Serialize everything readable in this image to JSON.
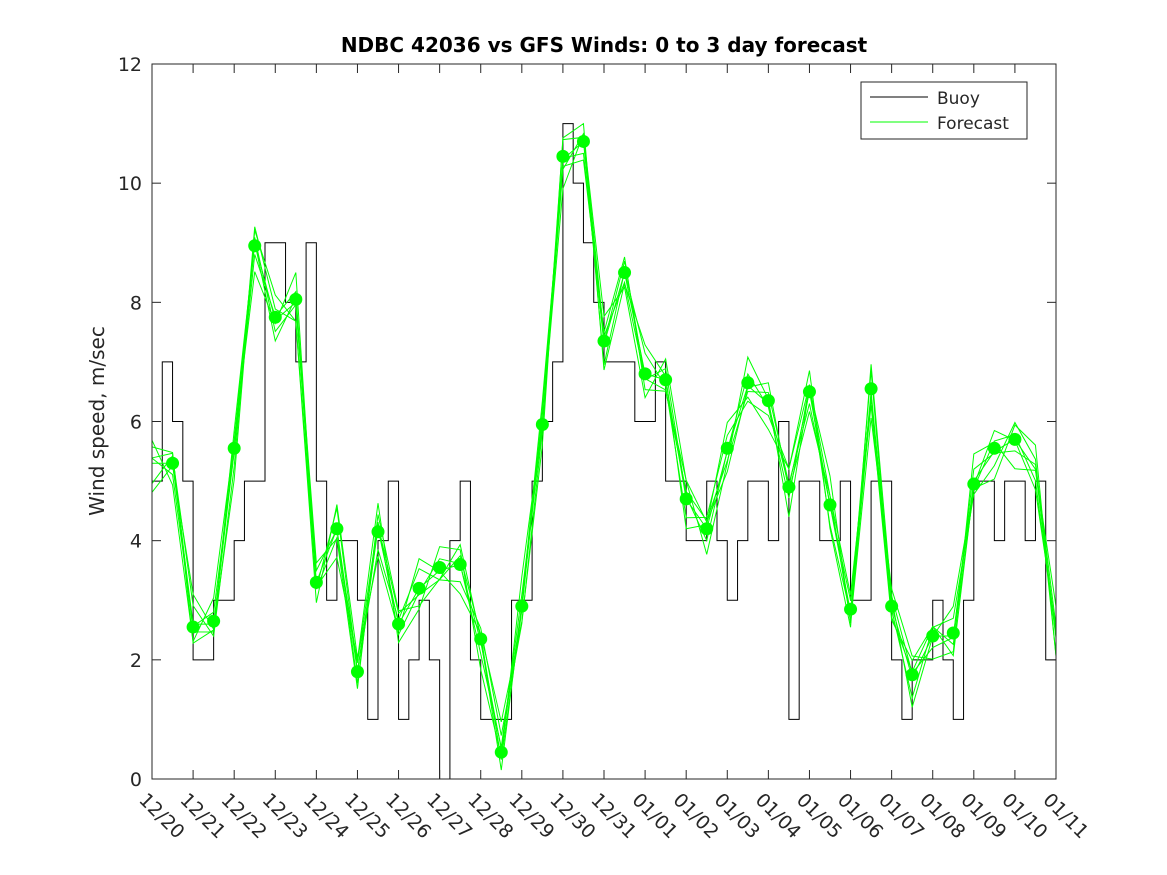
{
  "chart_data": {
    "type": "line",
    "title": "NDBC 42036 vs GFS Winds: 0 to 3 day forecast",
    "xlabel": "",
    "ylabel": "Wind speed, m/sec",
    "ylim": [
      0,
      12
    ],
    "yticks": [
      0,
      2,
      4,
      6,
      8,
      10,
      12
    ],
    "xlim": [
      "12/20",
      "01/11"
    ],
    "xticks": [
      "12/20",
      "12/21",
      "12/22",
      "12/23",
      "12/24",
      "12/25",
      "12/26",
      "12/27",
      "12/28",
      "12/29",
      "12/30",
      "12/31",
      "01/01",
      "01/02",
      "01/03",
      "01/04",
      "01/05",
      "01/06",
      "01/07",
      "01/08",
      "01/09",
      "01/10",
      "01/11"
    ],
    "grid": false,
    "legend_position": "top-right",
    "colors": {
      "buoy": "#000000",
      "forecast": "#00ff00"
    },
    "series": [
      {
        "name": "Buoy",
        "style": "stairs",
        "x": [
          "12/20 00:00",
          "12/20 06:00",
          "12/20 12:00",
          "12/20 18:00",
          "12/21 00:00",
          "12/21 06:00",
          "12/21 12:00",
          "12/21 18:00",
          "12/22 00:00",
          "12/22 06:00",
          "12/22 12:00",
          "12/22 18:00",
          "12/23 00:00",
          "12/23 06:00",
          "12/23 12:00",
          "12/23 18:00",
          "12/24 00:00",
          "12/24 06:00",
          "12/24 12:00",
          "12/24 18:00",
          "12/25 00:00",
          "12/25 06:00",
          "12/25 12:00",
          "12/25 18:00",
          "12/26 00:00",
          "12/26 06:00",
          "12/26 12:00",
          "12/26 18:00",
          "12/27 00:00",
          "12/27 06:00",
          "12/27 12:00",
          "12/27 18:00",
          "12/28 00:00",
          "12/28 06:00",
          "12/28 12:00",
          "12/28 18:00",
          "12/29 00:00",
          "12/29 06:00",
          "12/29 12:00",
          "12/29 18:00",
          "12/30 00:00",
          "12/30 06:00",
          "12/30 12:00",
          "12/30 18:00",
          "12/31 00:00",
          "12/31 06:00",
          "12/31 12:00",
          "12/31 18:00",
          "01/01 00:00",
          "01/01 06:00",
          "01/01 12:00",
          "01/01 18:00",
          "01/02 00:00",
          "01/02 06:00",
          "01/02 12:00",
          "01/02 18:00",
          "01/03 00:00",
          "01/03 06:00",
          "01/03 12:00",
          "01/03 18:00",
          "01/04 00:00",
          "01/04 06:00",
          "01/04 12:00",
          "01/04 18:00",
          "01/05 00:00",
          "01/05 06:00",
          "01/05 12:00",
          "01/05 18:00",
          "01/06 00:00",
          "01/06 06:00",
          "01/06 12:00",
          "01/06 18:00",
          "01/07 00:00",
          "01/07 06:00",
          "01/07 12:00",
          "01/07 18:00",
          "01/08 00:00",
          "01/08 06:00",
          "01/08 12:00",
          "01/08 18:00",
          "01/09 00:00",
          "01/09 06:00",
          "01/09 12:00",
          "01/09 18:00",
          "01/10 00:00",
          "01/10 06:00",
          "01/10 12:00",
          "01/10 18:00"
        ],
        "values": [
          5,
          7,
          6,
          5,
          2,
          2,
          3,
          3,
          4,
          5,
          5,
          9,
          9,
          8,
          7,
          9,
          5,
          3,
          4,
          4,
          3,
          1,
          4,
          5,
          1,
          2,
          3,
          2,
          0,
          4,
          5,
          2,
          1,
          1,
          1,
          3,
          3,
          5,
          6,
          7,
          11,
          10,
          9,
          8,
          7,
          7,
          7,
          6,
          6,
          7,
          5,
          5,
          4,
          4,
          5,
          4,
          3,
          4,
          5,
          5,
          4,
          6,
          1,
          5,
          5,
          4,
          4,
          5,
          3,
          3,
          5,
          5,
          2,
          1,
          2,
          2,
          3,
          2,
          1,
          3,
          5,
          5,
          4,
          5,
          5,
          4,
          5,
          2
        ]
      },
      {
        "name": "Forecast",
        "style": "ensemble-lines",
        "x": [
          "12/20 00:00",
          "12/20 12:00",
          "12/21 00:00",
          "12/21 12:00",
          "12/22 00:00",
          "12/22 12:00",
          "12/23 00:00",
          "12/23 12:00",
          "12/24 00:00",
          "12/24 12:00",
          "12/25 00:00",
          "12/25 12:00",
          "12/26 00:00",
          "12/26 12:00",
          "12/27 00:00",
          "12/27 12:00",
          "12/28 00:00",
          "12/28 12:00",
          "12/29 00:00",
          "12/29 12:00",
          "12/30 00:00",
          "12/30 12:00",
          "12/31 00:00",
          "12/31 12:00",
          "01/01 00:00",
          "01/01 12:00",
          "01/02 00:00",
          "01/02 12:00",
          "01/03 00:00",
          "01/03 12:00",
          "01/04 00:00",
          "01/04 12:00",
          "01/05 00:00",
          "01/05 12:00",
          "01/06 00:00",
          "01/06 12:00",
          "01/07 00:00",
          "01/07 12:00",
          "01/08 00:00",
          "01/08 12:00",
          "01/09 00:00",
          "01/09 12:00",
          "01/10 00:00",
          "01/10 12:00",
          "01/11 00:00"
        ],
        "values": [
          5.3,
          5.3,
          2.6,
          2.6,
          5.5,
          9.0,
          7.7,
          8.0,
          3.3,
          4.2,
          1.8,
          4.2,
          2.6,
          3.2,
          3.5,
          3.6,
          2.3,
          0.5,
          2.9,
          6.0,
          10.4,
          10.7,
          7.3,
          8.5,
          6.8,
          6.7,
          4.7,
          4.2,
          5.5,
          6.6,
          6.3,
          4.9,
          6.5,
          4.6,
          2.8,
          6.5,
          2.9,
          1.7,
          2.4,
          2.4,
          5.0,
          5.5,
          5.7,
          5.2,
          2.4
        ]
      },
      {
        "name": "",
        "style": "markers",
        "x": [
          "12/20 12:00",
          "12/21 00:00",
          "12/21 12:00",
          "12/22 00:00",
          "12/22 12:00",
          "12/23 00:00",
          "12/23 12:00",
          "12/24 00:00",
          "12/24 12:00",
          "12/25 00:00",
          "12/25 12:00",
          "12/26 00:00",
          "12/26 12:00",
          "12/27 00:00",
          "12/27 12:00",
          "12/28 00:00",
          "12/28 12:00",
          "12/29 00:00",
          "12/29 12:00",
          "12/30 00:00",
          "12/30 12:00",
          "12/31 00:00",
          "12/31 12:00",
          "01/01 00:00",
          "01/01 12:00",
          "01/02 00:00",
          "01/02 12:00",
          "01/03 00:00",
          "01/03 12:00",
          "01/04 00:00",
          "01/04 12:00",
          "01/05 00:00",
          "01/05 12:00",
          "01/06 00:00",
          "01/06 12:00",
          "01/07 00:00",
          "01/07 12:00",
          "01/08 00:00",
          "01/08 12:00",
          "01/09 00:00",
          "01/09 12:00",
          "01/10 00:00"
        ],
        "values": [
          5.3,
          2.55,
          2.65,
          5.55,
          8.95,
          7.75,
          8.05,
          3.3,
          4.2,
          1.8,
          4.15,
          2.6,
          3.2,
          3.55,
          3.6,
          2.35,
          0.45,
          2.9,
          5.95,
          10.45,
          10.7,
          7.35,
          8.5,
          6.8,
          6.7,
          4.7,
          4.2,
          5.55,
          6.65,
          6.35,
          4.9,
          6.5,
          4.6,
          2.85,
          6.55,
          2.9,
          1.75,
          2.4,
          2.45,
          4.95,
          5.55,
          5.7
        ]
      }
    ]
  }
}
